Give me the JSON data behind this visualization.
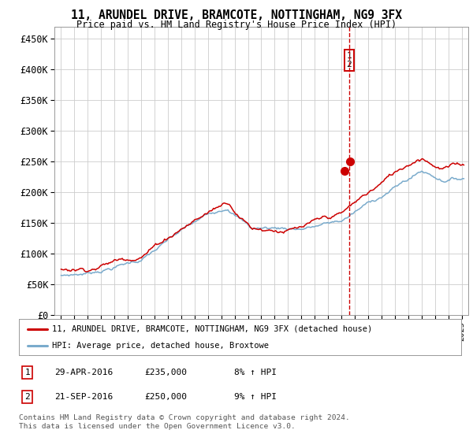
{
  "title": "11, ARUNDEL DRIVE, BRAMCOTE, NOTTINGHAM, NG9 3FX",
  "subtitle": "Price paid vs. HM Land Registry's House Price Index (HPI)",
  "line1_label": "11, ARUNDEL DRIVE, BRAMCOTE, NOTTINGHAM, NG9 3FX (detached house)",
  "line2_label": "HPI: Average price, detached house, Broxtowe",
  "line1_color": "#cc0000",
  "line2_color": "#7aabcc",
  "sale_prices": [
    235000,
    250000
  ],
  "vline_x": 2016.58,
  "ylabel_ticks": [
    "£0",
    "£50K",
    "£100K",
    "£150K",
    "£200K",
    "£250K",
    "£300K",
    "£350K",
    "£400K",
    "£450K"
  ],
  "ytick_values": [
    0,
    50000,
    100000,
    150000,
    200000,
    250000,
    300000,
    350000,
    400000,
    450000
  ],
  "xlim": [
    1994.5,
    2025.5
  ],
  "ylim": [
    0,
    470000
  ],
  "footer_line1": "Contains HM Land Registry data © Crown copyright and database right 2024.",
  "footer_line2": "This data is licensed under the Open Government Licence v3.0.",
  "table_rows": [
    [
      "1",
      "29-APR-2016",
      "£235,000",
      "8% ↑ HPI"
    ],
    [
      "2",
      "21-SEP-2016",
      "£250,000",
      "9% ↑ HPI"
    ]
  ],
  "background_color": "#ffffff",
  "grid_color": "#cccccc"
}
